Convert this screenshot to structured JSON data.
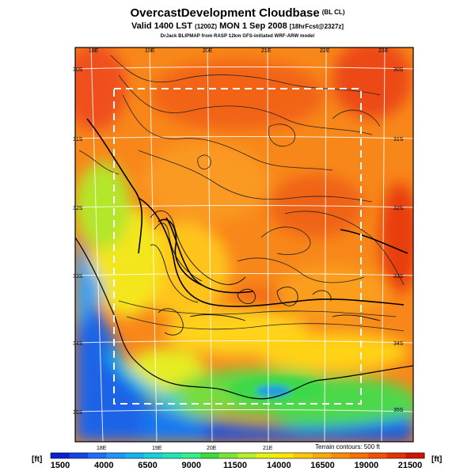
{
  "title": {
    "main": "OvercastDevelopment Cloudbase",
    "tag": "(BL CL)"
  },
  "valid_line": {
    "prefix": "Valid 1400 LST",
    "time_utc": "(1200Z)",
    "day": "MON 1 Sep 2008",
    "forecast": "[18hrFcst@2327z]"
  },
  "model_line": "DrJack BLIPMAP from RASP 12km GFS-initiated WRF-ARW model",
  "map": {
    "longitude_labels_top": [
      "18E",
      "19E",
      "20E",
      "21E",
      "22E",
      "23E"
    ],
    "longitude_labels_bottom": [
      "18E",
      "19E",
      "20E",
      "21E"
    ],
    "latitude_labels_left": [
      "30S",
      "31S",
      "32S",
      "33S",
      "34S",
      "35S"
    ],
    "latitude_labels_right": [
      "30S",
      "31S",
      "32S",
      "33S",
      "34S",
      "35S"
    ],
    "terrain_note": "Terrain contours: 500 ft",
    "ocean_color": "#1060d0",
    "land_high_color": "#f06010"
  },
  "colorbar": {
    "unit_left": "[ft]",
    "unit_right": "[ft]",
    "labels": [
      "1500",
      "4000",
      "6500",
      "9000",
      "11500",
      "14000",
      "16500",
      "19000",
      "21500"
    ],
    "colors": [
      "#0a1ed2",
      "#1446e6",
      "#1e6eff",
      "#1e96ff",
      "#14b4f0",
      "#14d2dc",
      "#1ee6b4",
      "#32f08c",
      "#3cdc3c",
      "#78e632",
      "#b4f028",
      "#e6f014",
      "#ffe600",
      "#ffc800",
      "#ffaa00",
      "#ff8c00",
      "#ff6e00",
      "#f05000",
      "#e63200",
      "#d21400"
    ]
  }
}
